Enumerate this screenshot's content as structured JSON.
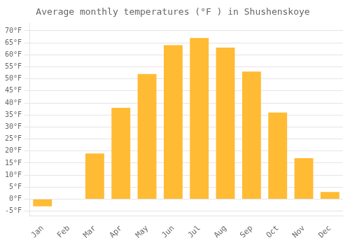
{
  "chart_data": {
    "type": "bar",
    "title": "Average monthly temperatures (°F ) in Shushenskoye",
    "categories": [
      "Jan",
      "Feb",
      "Mar",
      "Apr",
      "May",
      "Jun",
      "Jul",
      "Aug",
      "Sep",
      "Oct",
      "Nov",
      "Dec"
    ],
    "values": [
      -3,
      0,
      19,
      38,
      52,
      64,
      67,
      63,
      53,
      36,
      17,
      3
    ],
    "color": "#FFBB33",
    "ylim": [
      -7,
      73
    ],
    "yticks": [
      {
        "value": -5,
        "label": "-5°F"
      },
      {
        "value": 0,
        "label": "0°F"
      },
      {
        "value": 5,
        "label": "5°F"
      },
      {
        "value": 10,
        "label": "10°F"
      },
      {
        "value": 15,
        "label": "15°F"
      },
      {
        "value": 20,
        "label": "20°F"
      },
      {
        "value": 25,
        "label": "25°F"
      },
      {
        "value": 30,
        "label": "30°F"
      },
      {
        "value": 35,
        "label": "35°F"
      },
      {
        "value": 40,
        "label": "40°F"
      },
      {
        "value": 45,
        "label": "45°F"
      },
      {
        "value": 50,
        "label": "50°F"
      },
      {
        "value": 55,
        "label": "55°F"
      },
      {
        "value": 60,
        "label": "60°F"
      },
      {
        "value": 65,
        "label": "65°F"
      },
      {
        "value": 70,
        "label": "70°F"
      }
    ],
    "grid": true
  }
}
